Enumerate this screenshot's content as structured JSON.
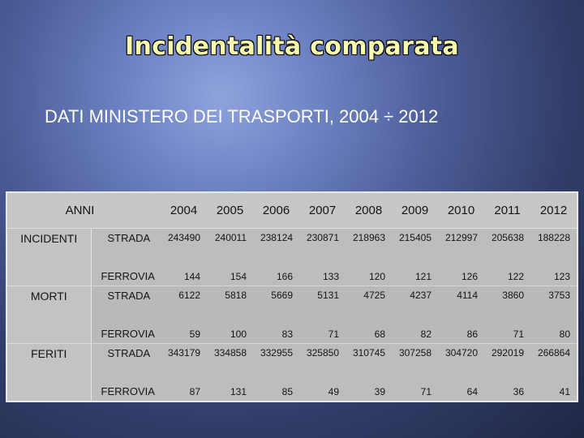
{
  "title": "Incidentalità comparata",
  "subtitle": "DATI MINISTERO DEI TRASPORTI, 2004 ÷ 2012",
  "table": {
    "header_label": "ANNI",
    "years": [
      "2004",
      "2005",
      "2006",
      "2007",
      "2008",
      "2009",
      "2010",
      "2011",
      "2012"
    ],
    "groups": [
      {
        "label": "INCIDENTI",
        "rows": [
          {
            "label": "STRADA",
            "values": [
              "243490",
              "240011",
              "238124",
              "230871",
              "218963",
              "215405",
              "212997",
              "205638",
              "188228"
            ]
          },
          {
            "label": "FERROVIA",
            "values": [
              "144",
              "154",
              "166",
              "133",
              "120",
              "121",
              "126",
              "122",
              "123"
            ]
          }
        ]
      },
      {
        "label": "MORTI",
        "rows": [
          {
            "label": "STRADA",
            "values": [
              "6122",
              "5818",
              "5669",
              "5131",
              "4725",
              "4237",
              "4114",
              "3860",
              "3753"
            ]
          },
          {
            "label": "FERROVIA",
            "values": [
              "59",
              "100",
              "83",
              "71",
              "68",
              "82",
              "86",
              "71",
              "80"
            ]
          }
        ]
      },
      {
        "label": "FERITI",
        "rows": [
          {
            "label": "STRADA",
            "values": [
              "343179",
              "334858",
              "332955",
              "325850",
              "310745",
              "307258",
              "304720",
              "292019",
              "266864"
            ]
          },
          {
            "label": "FERROVIA",
            "values": [
              "87",
              "131",
              "85",
              "49",
              "39",
              "71",
              "64",
              "36",
              "41"
            ]
          }
        ]
      }
    ]
  }
}
